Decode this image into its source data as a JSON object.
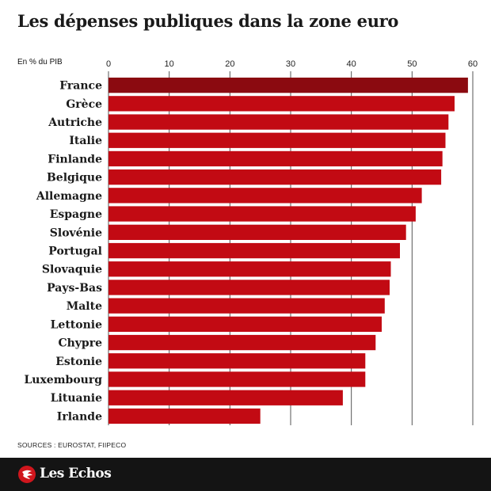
{
  "title": "Les dépenses publiques dans la zone euro",
  "source": "SOURCES : EUROSTAT, FIIPECO",
  "brand": {
    "name": "Les Echos",
    "mark_color": "#d0161d"
  },
  "colors": {
    "bar_top": "#8b0a10",
    "bar": "#c20a13",
    "grid": "#555555",
    "footer_bg": "#141414"
  },
  "chart_data": {
    "type": "bar",
    "orientation": "horizontal",
    "ylabel": "En % du PIB",
    "xlim": [
      0,
      60
    ],
    "ticks": [
      0,
      10,
      20,
      30,
      40,
      50,
      60
    ],
    "grid": true,
    "categories": [
      "France",
      "Grèce",
      "Autriche",
      "Italie",
      "Finlande",
      "Belgique",
      "Allemagne",
      "Espagne",
      "Slovénie",
      "Portugal",
      "Slovaquie",
      "Pays-Bas",
      "Malte",
      "Lettonie",
      "Chypre",
      "Estonie",
      "Luxembourg",
      "Lituanie",
      "Irlande"
    ],
    "values": [
      59.2,
      57.0,
      56.0,
      55.5,
      55.0,
      54.8,
      51.6,
      50.6,
      49.0,
      48.0,
      46.5,
      46.3,
      45.5,
      45.0,
      44.0,
      42.3,
      42.3,
      38.6,
      25.0
    ]
  }
}
